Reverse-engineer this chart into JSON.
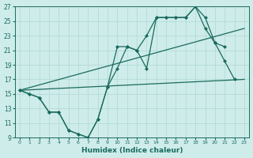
{
  "xlabel": "Humidex (Indice chaleur)",
  "bg_color": "#ceecea",
  "line_color": "#1a6b5e",
  "grid_color": "#aed8d4",
  "xlim": [
    -0.5,
    23.5
  ],
  "ylim": [
    9,
    27
  ],
  "xticks": [
    0,
    1,
    2,
    3,
    4,
    5,
    6,
    7,
    8,
    9,
    10,
    11,
    12,
    13,
    14,
    15,
    16,
    17,
    18,
    19,
    20,
    21,
    22,
    23
  ],
  "yticks": [
    9,
    11,
    13,
    15,
    17,
    19,
    21,
    23,
    25,
    27
  ],
  "line1_x": [
    0,
    1,
    2,
    3,
    4,
    5,
    6,
    7,
    8,
    9,
    10,
    11,
    12,
    13,
    14,
    15,
    16,
    17,
    18,
    19,
    20,
    21,
    22
  ],
  "line1_y": [
    15.5,
    15.0,
    14.5,
    12.5,
    12.5,
    10.0,
    9.5,
    9.0,
    11.5,
    16.0,
    18.5,
    21.5,
    21.0,
    18.5,
    25.5,
    25.5,
    25.5,
    25.5,
    27.0,
    25.5,
    22.0,
    19.5,
    17.0
  ],
  "line2_x": [
    0,
    1,
    2,
    3,
    4,
    5,
    6,
    7,
    8,
    9,
    10,
    11,
    12,
    13,
    14,
    15,
    16,
    17,
    18,
    19,
    20,
    21
  ],
  "line2_y": [
    15.5,
    15.0,
    14.5,
    12.5,
    12.5,
    10.0,
    9.5,
    9.0,
    11.5,
    16.0,
    21.5,
    21.5,
    21.0,
    23.0,
    25.5,
    25.5,
    25.5,
    25.5,
    27.0,
    24.0,
    22.0,
    21.5
  ],
  "refline1_x": [
    0,
    23
  ],
  "refline1_y": [
    15.5,
    17.0
  ],
  "refline2_x": [
    0,
    23
  ],
  "refline2_y": [
    15.5,
    24.0
  ],
  "markersize": 2.5,
  "linewidth": 0.9
}
